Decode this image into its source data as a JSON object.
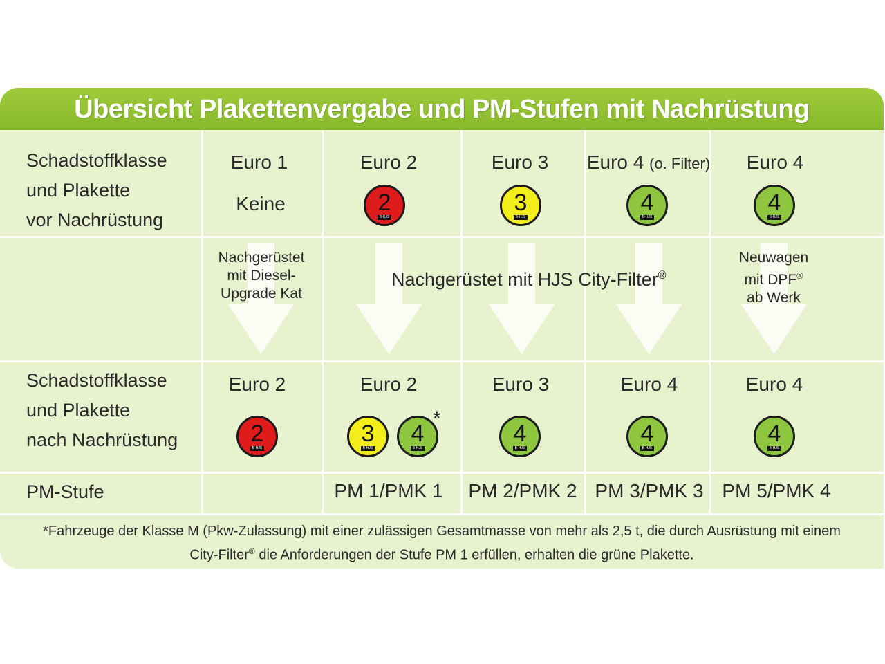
{
  "colors": {
    "header_green": "#8dbf31",
    "panel": "#e8f2cf",
    "badge_red": "#e01b1b",
    "badge_yellow": "#f4ee1a",
    "badge_green": "#8ec63f"
  },
  "title": "Übersicht Plakettenvergabe und PM-Stufen mit Nachrüstung",
  "rows": {
    "before": [
      "Schadstoffklasse",
      "und Plakette",
      "vor Nachrüstung"
    ],
    "after": [
      "Schadstoffklasse",
      "und Plakette",
      "nach Nachrüstung"
    ],
    "pm": "PM-Stufe"
  },
  "before": {
    "classes": [
      "Euro 1",
      "Euro 2",
      "Euro 3",
      "Euro 4",
      "Euro 4"
    ],
    "col4_suffix": "(o. Filter)",
    "none_label": "Keine",
    "badges": [
      {
        "number": "2",
        "color": "red"
      },
      {
        "number": "3",
        "color": "yellow"
      },
      {
        "number": "4",
        "color": "green"
      },
      {
        "number": "4",
        "color": "green"
      }
    ]
  },
  "retrofit": {
    "col1": [
      "Nachgerüstet",
      "mit Diesel-",
      "Upgrade Kat"
    ],
    "center": "Nachgerüstet mit HJS City-Filter",
    "reg": "®",
    "col5": [
      "Neuwagen",
      "mit DPF",
      "ab Werk"
    ]
  },
  "after": {
    "classes": [
      "Euro 2",
      "Euro 2",
      "Euro 3",
      "Euro 4",
      "Euro 4"
    ],
    "badges": [
      {
        "number": "2",
        "color": "red"
      },
      {
        "number": "3",
        "color": "yellow"
      },
      {
        "number": "4",
        "color": "green"
      },
      {
        "number": "4",
        "color": "green"
      },
      {
        "number": "4",
        "color": "green"
      },
      {
        "number": "4",
        "color": "green"
      }
    ],
    "asterisk": "*"
  },
  "pm_levels": [
    "PM 1/PMK 1",
    "PM 2/PMK 2",
    "PM 3/PMK 3",
    "PM 5/PMK 4"
  ],
  "badge_mark": "B-HJS",
  "footnote": {
    "line1": "*Fahrzeuge der Klasse M (Pkw-Zulassung) mit einer zulässigen Gesamtmasse von mehr als 2,5 t, die durch Ausrüstung mit einem",
    "line2_a": "City-Filter",
    "line2_b": " die Anforderungen der Stufe PM 1 erfüllen, erhalten die grüne Plakette."
  }
}
